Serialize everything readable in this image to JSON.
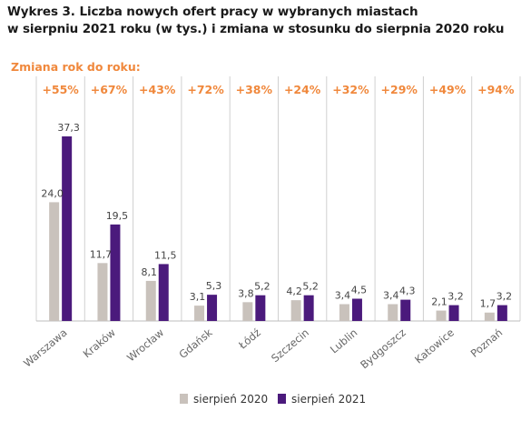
{
  "title_line1": "Wykres 3. Liczba nowych ofert pracy w wybranych miastach",
  "title_line2": "w sierpniu 2021 roku (w tys.) i zmiana w stosunku do sierpnia 2020 roku",
  "change_heading": "Zmiana rok do roku:",
  "colors": {
    "s2020": "#c9c2bc",
    "s2021": "#4b1a7c",
    "change": "#f0883c"
  },
  "chart_data": {
    "type": "bar",
    "categories": [
      "Warszawa",
      "Kraków",
      "Wrocław",
      "Gdańsk",
      "Łódź",
      "Szczecin",
      "Lublin",
      "Bydgoszcz",
      "Katowice",
      "Poznań"
    ],
    "series": [
      {
        "name": "sierpień 2020",
        "values": [
          24.0,
          11.7,
          8.1,
          3.1,
          3.8,
          4.2,
          3.4,
          3.4,
          2.1,
          1.7
        ],
        "labels": [
          "24,0",
          "11,7",
          "8,1",
          "3,1",
          "3,8",
          "4,2",
          "3,4",
          "3,4",
          "2,1",
          "1,7"
        ]
      },
      {
        "name": "sierpień 2021",
        "values": [
          37.3,
          19.5,
          11.5,
          5.3,
          5.2,
          5.2,
          4.5,
          4.3,
          3.2,
          3.2
        ],
        "labels": [
          "37,3",
          "19,5",
          "11,5",
          "5,3",
          "5,2",
          "5,2",
          "4,5",
          "4,3",
          "3,2",
          "3,2"
        ]
      }
    ],
    "changes": [
      "+55%",
      "+67%",
      "+43%",
      "+72%",
      "+38%",
      "+24%",
      "+32%",
      "+29%",
      "+49%",
      "+94%"
    ],
    "title": "Wykres 3. Liczba nowych ofert pracy w wybranych miastach w sierpniu 2021 roku (w tys.) i zmiana w stosunku do sierpnia 2020 roku",
    "ylim": [
      0,
      37.3
    ],
    "grid": false,
    "legend_position": "bottom-center"
  }
}
